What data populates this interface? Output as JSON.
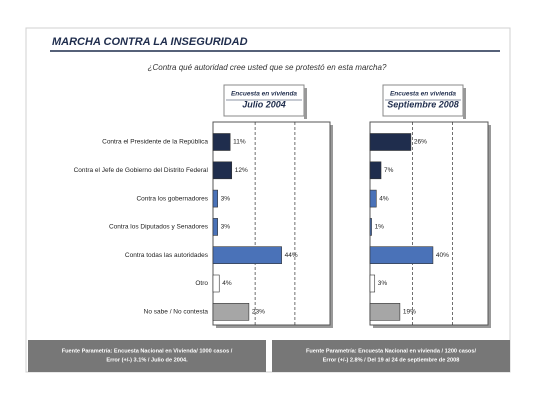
{
  "header": {
    "title": "MARCHA CONTRA LA INSEGURIDAD",
    "question": "¿Contra qué autoridad cree usted que se protestó en esta marcha?"
  },
  "chart_data": [
    {
      "type": "bar",
      "orientation": "horizontal",
      "subtitle": "Encuesta en vivienda",
      "title": "Julio 2004",
      "categories": [
        "Contra el Presidente de la República",
        "Contra el Jefe de Gobierno del Distrito Federal",
        "Contra los gobernadores",
        "Contra los Diputados y Senadores",
        "Contra todas las autoridades",
        "Otro",
        "No sabe / No contesta"
      ],
      "values": [
        11,
        12,
        3,
        3,
        44,
        4,
        23
      ],
      "value_labels": [
        "11%",
        "12%",
        "3%",
        "3%",
        "44%",
        "4%",
        "23%"
      ],
      "colors": [
        "#1f2d4d",
        "#1f2d4d",
        "#4a72b8",
        "#4a72b8",
        "#4a72b8",
        "#ffffff",
        "#a6a6a6"
      ],
      "xlim": [
        0,
        75
      ],
      "source": [
        "Fuente Parametría: Encuesta Nacional en Vivienda/ 1000 casos /",
        "Error (+/-) 3.1% / Julio de 2004."
      ]
    },
    {
      "type": "bar",
      "orientation": "horizontal",
      "subtitle": "Encuesta en vivienda",
      "title": "Septiembre 2008",
      "values": [
        26,
        7,
        4,
        1,
        40,
        3,
        19
      ],
      "value_labels": [
        "26%",
        "7%",
        "4%",
        "1%",
        "40%",
        "3%",
        "19%"
      ],
      "colors": [
        "#1f2d4d",
        "#1f2d4d",
        "#4a72b8",
        "#4a72b8",
        "#4a72b8",
        "#ffffff",
        "#a6a6a6"
      ],
      "xlim": [
        0,
        75
      ],
      "source": [
        "Fuente Parametría: Encuesta Nacional en vivienda / 1200 casos/",
        "Error (+/-) 2.8% / Del 19 al 24 de septiembre de 2008"
      ]
    }
  ]
}
